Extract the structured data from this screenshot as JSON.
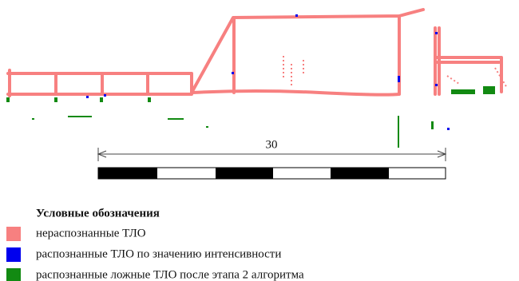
{
  "scale_bar": {
    "label": "30"
  },
  "legend": {
    "title": "Условные обозначения",
    "items": [
      {
        "label": "нераспознанные ТЛО",
        "color": "#f78080"
      },
      {
        "label": "распознанные ТЛО по значению интенсивности",
        "color": "#0000ee"
      },
      {
        "label": "распознанные ложные ТЛО после этапа 2 алгоритма",
        "color": "#128a12"
      }
    ]
  }
}
